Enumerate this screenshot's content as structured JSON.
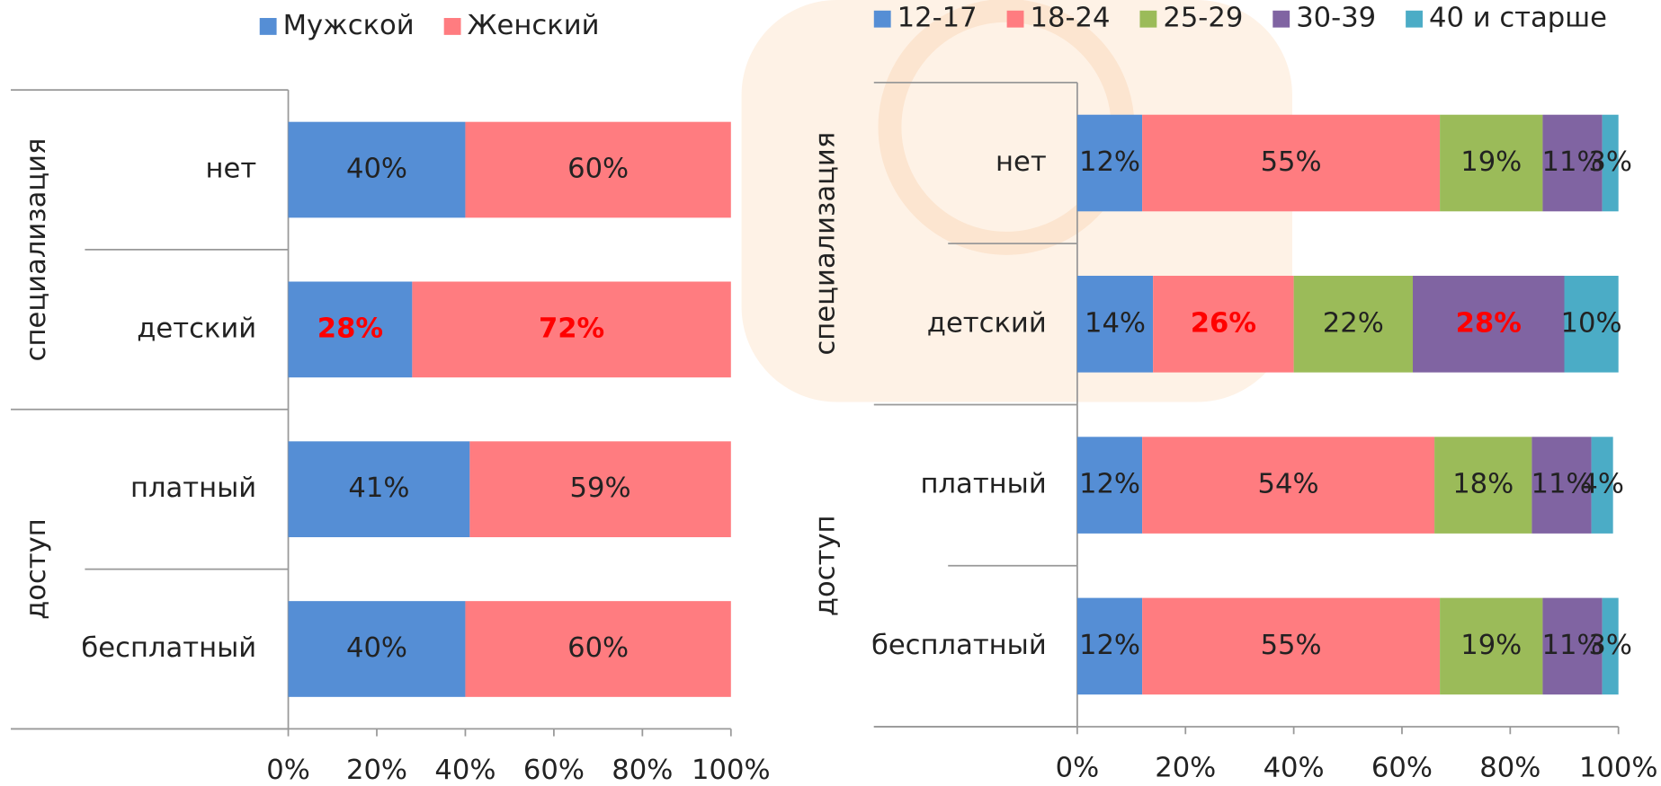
{
  "chart_data": [
    {
      "type": "stacked_bar_horizontal",
      "groups": [
        {
          "name": "специализация",
          "categories": [
            "нет",
            "детский"
          ]
        },
        {
          "name": "доступ",
          "categories": [
            "платный",
            "бесплатный"
          ]
        }
      ],
      "series": [
        {
          "name": "Мужской",
          "color": "#558ed5",
          "values": [
            40,
            28,
            41,
            40
          ],
          "value_labels": [
            "40%",
            "28%",
            "41%",
            "40%"
          ],
          "highlight": [
            false,
            true,
            false,
            false
          ]
        },
        {
          "name": "Женский",
          "color": "#ff7c80",
          "values": [
            60,
            72,
            59,
            60
          ],
          "value_labels": [
            "60%",
            "72%",
            "59%",
            "60%"
          ],
          "highlight": [
            false,
            true,
            false,
            false
          ]
        }
      ],
      "highlight_color": "#ff0000",
      "xlim": [
        0,
        100
      ],
      "xticks": [
        {
          "value": 0,
          "label": "0%"
        },
        {
          "value": 20,
          "label": "20%"
        },
        {
          "value": 40,
          "label": "40%"
        },
        {
          "value": 60,
          "label": "60%"
        },
        {
          "value": 80,
          "label": "80%"
        },
        {
          "value": 100,
          "label": "100%"
        }
      ],
      "legend": "top"
    },
    {
      "type": "stacked_bar_horizontal",
      "groups": [
        {
          "name": "специализация",
          "categories": [
            "нет",
            "детский"
          ]
        },
        {
          "name": "доступ",
          "categories": [
            "платный",
            "бесплатный"
          ]
        }
      ],
      "series": [
        {
          "name": "12-17",
          "color": "#558ed5",
          "values": [
            12,
            14,
            12,
            12
          ],
          "value_labels": [
            "12%",
            "14%",
            "12%",
            "12%"
          ],
          "highlight": [
            false,
            false,
            false,
            false
          ]
        },
        {
          "name": "18-24",
          "color": "#ff7c80",
          "values": [
            55,
            26,
            54,
            55
          ],
          "value_labels": [
            "55%",
            "26%",
            "54%",
            "55%"
          ],
          "highlight": [
            false,
            true,
            false,
            false
          ]
        },
        {
          "name": "25-29",
          "color": "#9bbb59",
          "values": [
            19,
            22,
            18,
            19
          ],
          "value_labels": [
            "19%",
            "22%",
            "18%",
            "19%"
          ],
          "highlight": [
            false,
            false,
            false,
            false
          ]
        },
        {
          "name": "30-39",
          "color": "#8064a2",
          "values": [
            11,
            28,
            11,
            11
          ],
          "value_labels": [
            "11%",
            "28%",
            "11%",
            "11%"
          ],
          "highlight": [
            false,
            true,
            false,
            false
          ]
        },
        {
          "name": "40 и старше",
          "color": "#4bacc6",
          "values": [
            3,
            10,
            4,
            3
          ],
          "value_labels": [
            "3%",
            "10%",
            "4%",
            "3%"
          ],
          "highlight": [
            false,
            false,
            false,
            false
          ]
        }
      ],
      "highlight_color": "#ff0000",
      "xlim": [
        0,
        100
      ],
      "xticks": [
        {
          "value": 0,
          "label": "0%"
        },
        {
          "value": 20,
          "label": "20%"
        },
        {
          "value": 40,
          "label": "40%"
        },
        {
          "value": 60,
          "label": "60%"
        },
        {
          "value": 80,
          "label": "80%"
        },
        {
          "value": 100,
          "label": "100%"
        }
      ],
      "legend": "top"
    }
  ]
}
